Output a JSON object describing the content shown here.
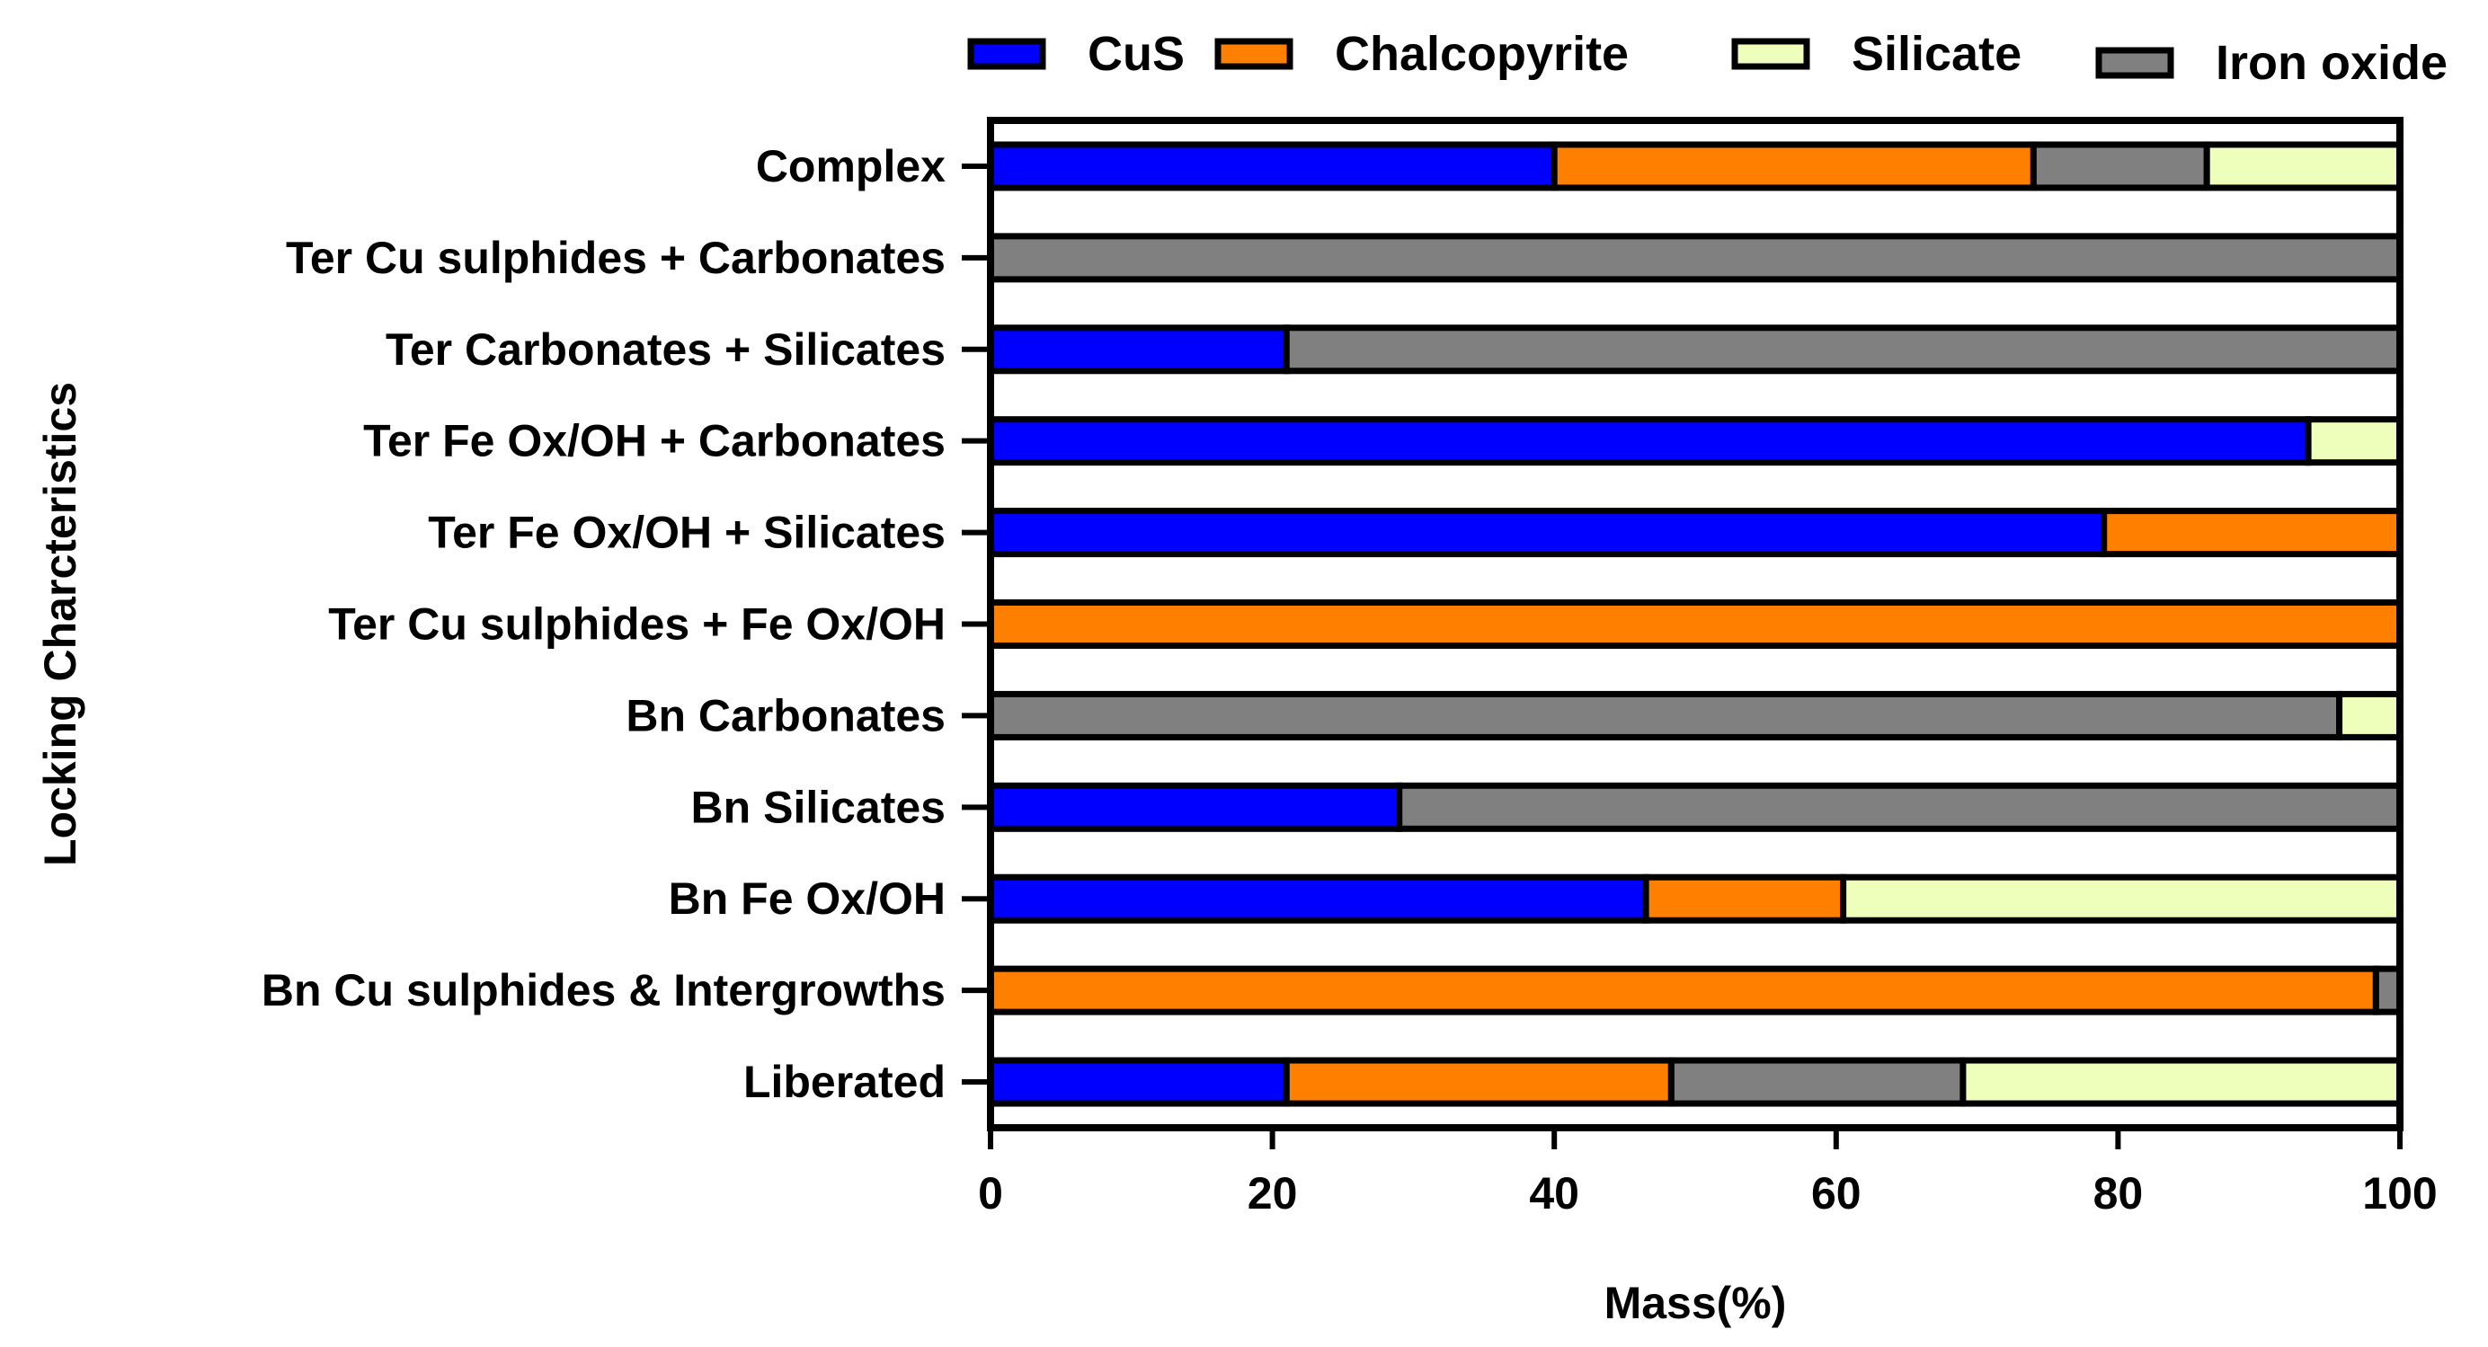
{
  "chart_data": {
    "type": "bar",
    "orientation": "horizontal",
    "stacked": true,
    "xlabel": "Mass(%)",
    "ylabel": "Locking Charcteristics",
    "xlim": [
      0,
      100
    ],
    "xticks": [
      "0",
      "20",
      "40",
      "60",
      "80",
      "100"
    ],
    "grid": false,
    "legend_position": "top",
    "categories": [
      "Complex",
      "Ter Cu sulphides + Carbonates",
      "Ter Carbonates + Silicates",
      "Ter Fe Ox/OH + Carbonates",
      "Ter Fe Ox/OH + Silicates",
      "Ter Cu sulphides + Fe Ox/OH",
      "Bn Carbonates",
      "Bn Silicates",
      "Bn Fe Ox/OH",
      "Bn Cu sulphides & Intergrowths",
      "Liberated"
    ],
    "legend": [
      {
        "name": "CuS",
        "color": "#0000ff"
      },
      {
        "name": "Chalcopyrite",
        "color": "#ff8000"
      },
      {
        "name": "Silicate",
        "color": "#eeffbb"
      },
      {
        "name": "Iron oxide",
        "color": "#808080"
      }
    ],
    "bars": [
      [
        {
          "name": "CuS",
          "value": 40
        },
        {
          "name": "Chalcopyrite",
          "value": 34
        },
        {
          "name": "Iron oxide",
          "value": 12.3
        },
        {
          "name": "Silicate",
          "value": 13.7
        }
      ],
      [
        {
          "name": "Iron oxide",
          "value": 100
        }
      ],
      [
        {
          "name": "CuS",
          "value": 21
        },
        {
          "name": "Iron oxide",
          "value": 79
        }
      ],
      [
        {
          "name": "CuS",
          "value": 93.5
        },
        {
          "name": "Silicate",
          "value": 6.5
        }
      ],
      [
        {
          "name": "CuS",
          "value": 79
        },
        {
          "name": "Chalcopyrite",
          "value": 21
        }
      ],
      [
        {
          "name": "Chalcopyrite",
          "value": 100
        }
      ],
      [
        {
          "name": "Iron oxide",
          "value": 95.7
        },
        {
          "name": "Silicate",
          "value": 4.3
        }
      ],
      [
        {
          "name": "CuS",
          "value": 29
        },
        {
          "name": "Iron oxide",
          "value": 71
        }
      ],
      [
        {
          "name": "CuS",
          "value": 46.5
        },
        {
          "name": "Chalcopyrite",
          "value": 14
        },
        {
          "name": "Silicate",
          "value": 39.5
        }
      ],
      [
        {
          "name": "Chalcopyrite",
          "value": 98.3
        },
        {
          "name": "Iron oxide",
          "value": 1.7
        }
      ],
      [
        {
          "name": "CuS",
          "value": 21
        },
        {
          "name": "Chalcopyrite",
          "value": 27.3
        },
        {
          "name": "Iron oxide",
          "value": 20.7
        },
        {
          "name": "Silicate",
          "value": 31
        }
      ]
    ]
  }
}
